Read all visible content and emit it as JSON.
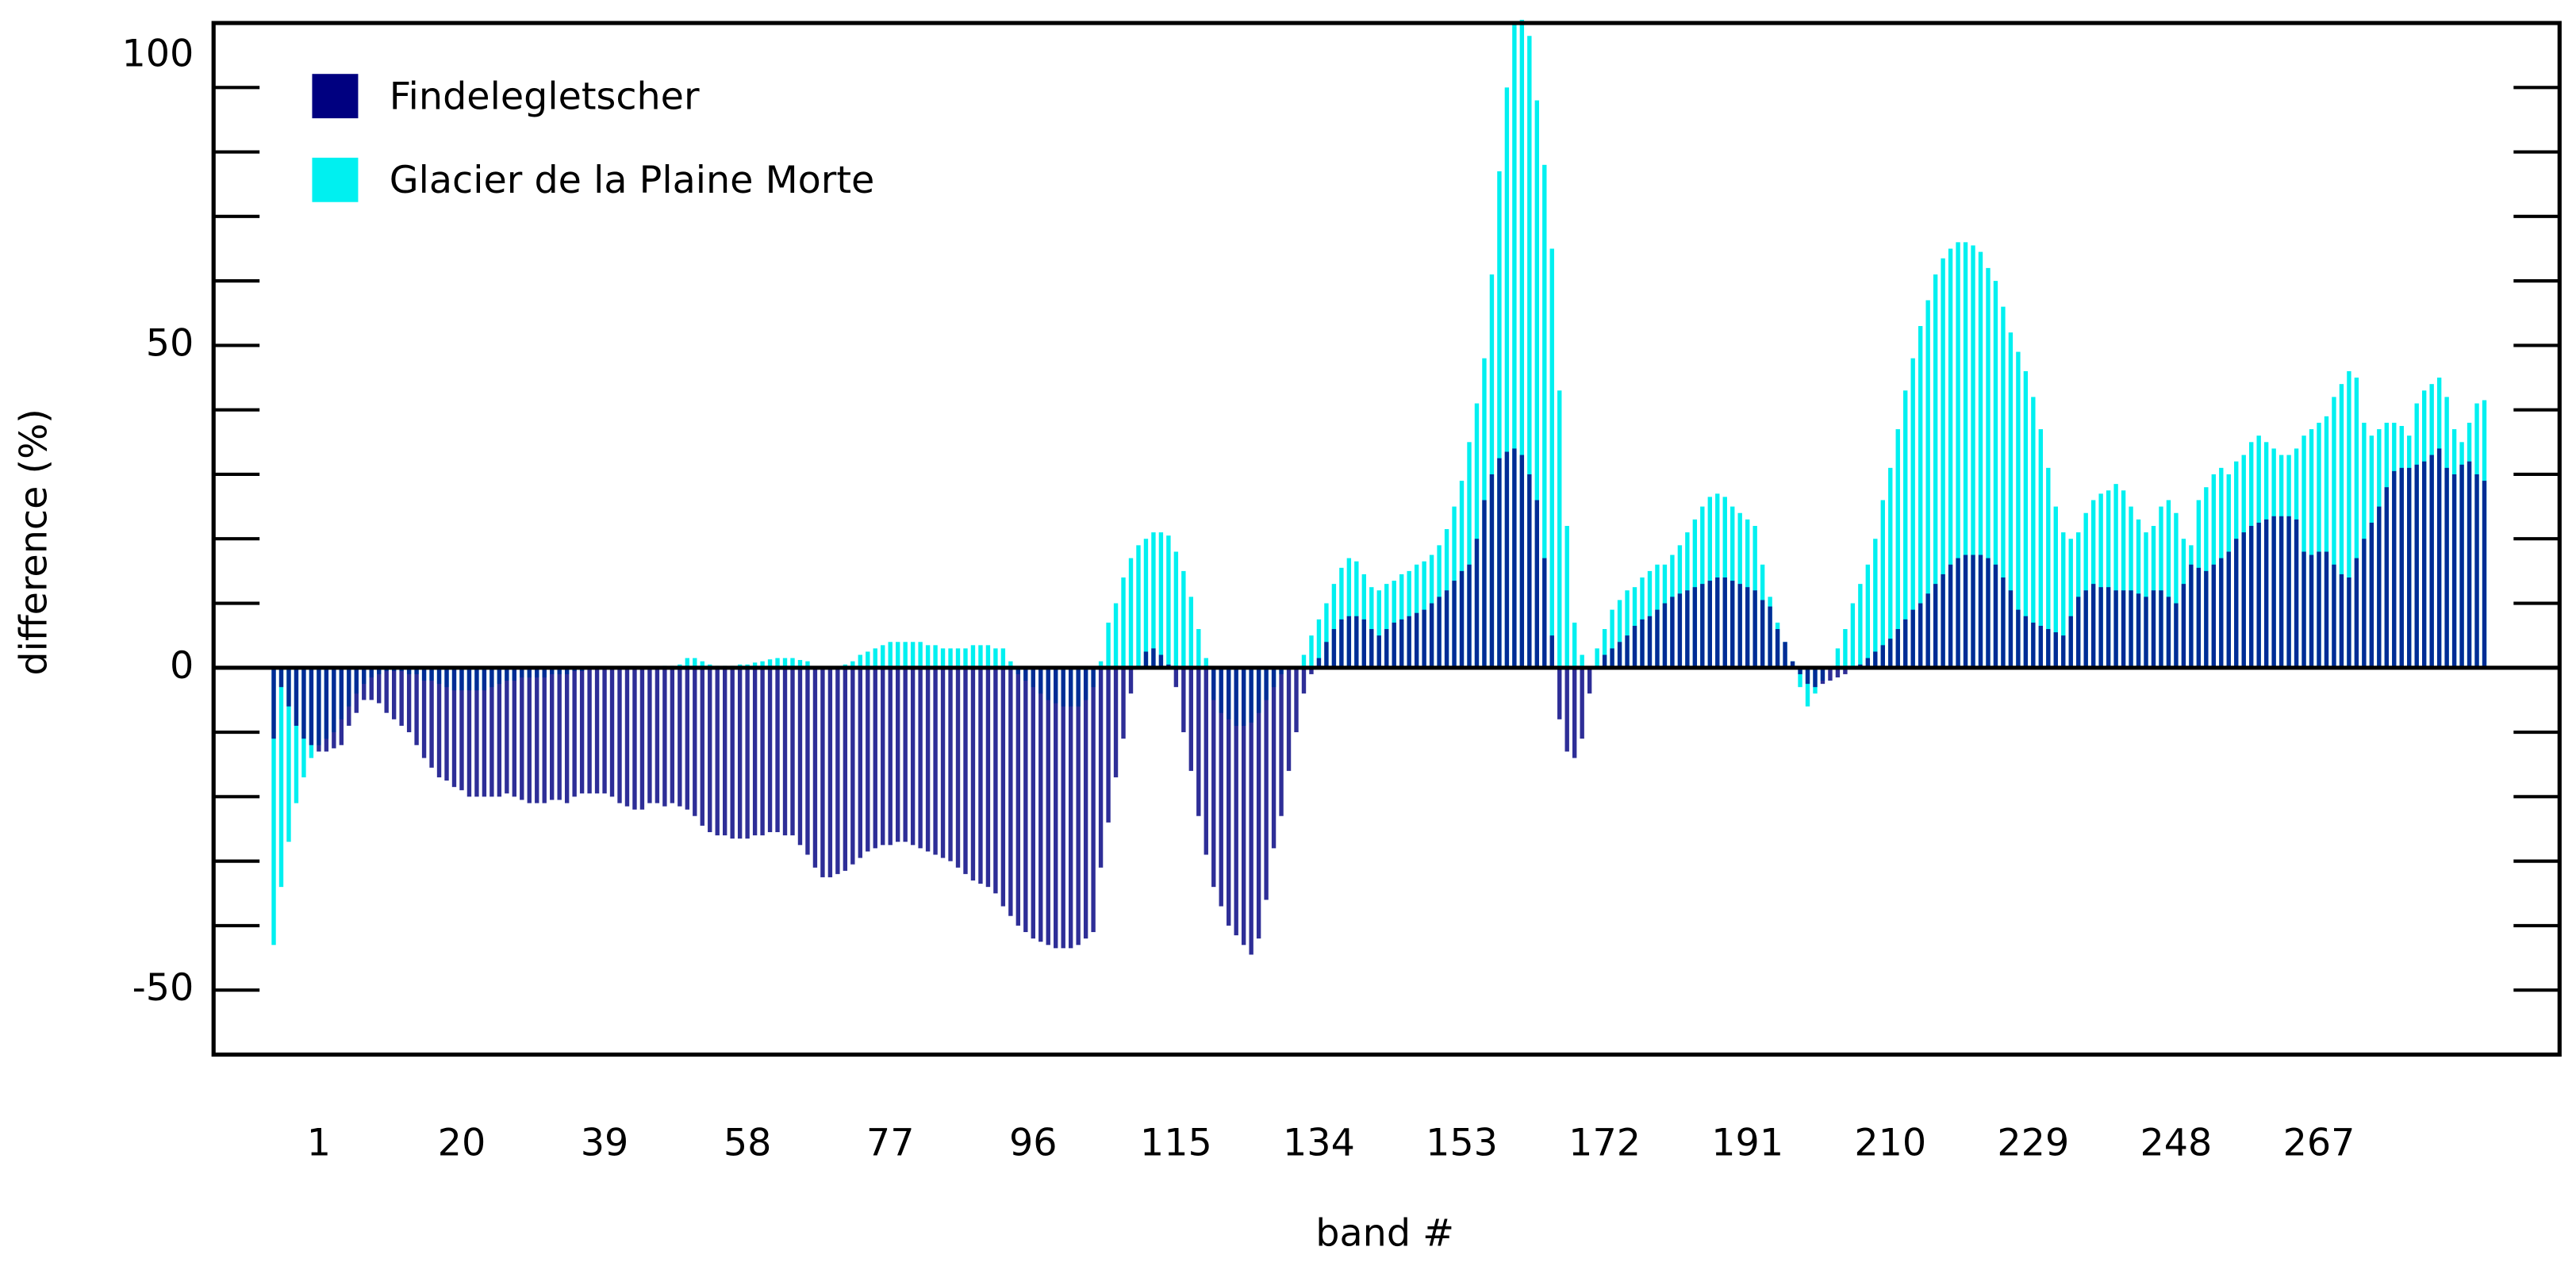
{
  "chart_data": {
    "type": "bar",
    "xlabel": "band #",
    "ylabel": "difference (%)",
    "x": [
      -5,
      -4,
      -3,
      -2,
      -1,
      0,
      1,
      2,
      3,
      4,
      5,
      6,
      7,
      8,
      9,
      10,
      11,
      12,
      13,
      14,
      15,
      16,
      17,
      18,
      19,
      20,
      21,
      22,
      23,
      24,
      25,
      26,
      27,
      28,
      29,
      30,
      31,
      32,
      33,
      34,
      35,
      36,
      37,
      38,
      39,
      40,
      41,
      42,
      43,
      44,
      45,
      46,
      47,
      48,
      49,
      50,
      51,
      52,
      53,
      54,
      55,
      56,
      57,
      58,
      59,
      60,
      61,
      62,
      63,
      64,
      65,
      66,
      67,
      68,
      69,
      70,
      71,
      72,
      73,
      74,
      75,
      76,
      77,
      78,
      79,
      80,
      81,
      82,
      83,
      84,
      85,
      86,
      87,
      88,
      89,
      90,
      91,
      92,
      93,
      94,
      95,
      96,
      97,
      98,
      99,
      100,
      101,
      102,
      103,
      104,
      105,
      106,
      107,
      108,
      109,
      110,
      111,
      112,
      113,
      114,
      115,
      116,
      117,
      118,
      119,
      120,
      121,
      122,
      123,
      124,
      125,
      126,
      127,
      128,
      129,
      130,
      131,
      132,
      133,
      134,
      135,
      136,
      137,
      138,
      139,
      140,
      141,
      142,
      143,
      144,
      145,
      146,
      147,
      148,
      149,
      150,
      151,
      152,
      153,
      154,
      155,
      156,
      157,
      158,
      159,
      160,
      161,
      162,
      163,
      164,
      165,
      166,
      167,
      168,
      169,
      170,
      171,
      172,
      173,
      174,
      175,
      176,
      177,
      178,
      179,
      180,
      181,
      182,
      183,
      184,
      185,
      186,
      187,
      188,
      189,
      190,
      191,
      192,
      193,
      194,
      195,
      196,
      197,
      198,
      199,
      200,
      201,
      202,
      203,
      204,
      205,
      206,
      207,
      208,
      209,
      210,
      211,
      212,
      213,
      214,
      215,
      216,
      217,
      218,
      219,
      220,
      221,
      222,
      223,
      224,
      225,
      226,
      227,
      228,
      229,
      230,
      231,
      232,
      233,
      234,
      235,
      236,
      237,
      238,
      239,
      240,
      241,
      242,
      243,
      244,
      245,
      246,
      247,
      248,
      249,
      250,
      251,
      252,
      253,
      254,
      255,
      256,
      257,
      258,
      259,
      260,
      261,
      262,
      263,
      264,
      265,
      266,
      267,
      268,
      269,
      270,
      271,
      272,
      273,
      274,
      275,
      276,
      277,
      278,
      279,
      280,
      281,
      282,
      283,
      284,
      285,
      286,
      287,
      288,
      289
    ],
    "series": [
      {
        "name": "Findelegletscher",
        "color": "#000080",
        "values": [
          -11,
          -3,
          -6,
          -9,
          -11,
          -12,
          -13,
          -13,
          -12.5,
          -12,
          -9,
          -7,
          -5,
          -5,
          -5.5,
          -7,
          -8,
          -9,
          -10,
          -12,
          -14,
          -15.5,
          -17,
          -17.5,
          -18.5,
          -19,
          -20,
          -20,
          -20,
          -20,
          -20,
          -19.5,
          -20,
          -20.5,
          -21,
          -21,
          -21,
          -20.5,
          -20.5,
          -21,
          -20,
          -19.5,
          -19.5,
          -19.5,
          -19.5,
          -20,
          -21,
          -21.5,
          -22,
          -22,
          -21,
          -21,
          -21.5,
          -21,
          -21.5,
          -22,
          -23,
          -24.5,
          -25.5,
          -26,
          -26,
          -26.5,
          -26.5,
          -26.5,
          -26,
          -26,
          -25.5,
          -25.5,
          -26,
          -26,
          -27.5,
          -29,
          -31,
          -32.5,
          -32.5,
          -32,
          -31.5,
          -30.5,
          -29.5,
          -28.5,
          -28,
          -27.5,
          -27.5,
          -27,
          -27,
          -27.5,
          -28,
          -28.5,
          -29,
          -29.5,
          -30,
          -31,
          -32,
          -33,
          -33.5,
          -34,
          -35,
          -37,
          -38.5,
          -40,
          -41,
          -42,
          -42.5,
          -43,
          -43.5,
          -43.5,
          -43.5,
          -43,
          -42,
          -41,
          -31,
          -24,
          -17,
          -11,
          -4,
          0,
          2.5,
          3,
          2,
          0.5,
          -3,
          -10,
          -16,
          -23,
          -29,
          -34,
          -37,
          -40,
          -41.5,
          -43,
          -44.5,
          -42,
          -36,
          -28,
          -23,
          -16,
          -10,
          -4,
          -1,
          1.5,
          4,
          6,
          7.5,
          8,
          8,
          7.5,
          6,
          5,
          6,
          7,
          7.5,
          8,
          8.5,
          9,
          10,
          11,
          12,
          13.5,
          15,
          16,
          20,
          26,
          30,
          32.5,
          33.5,
          34,
          33,
          30,
          26,
          17,
          5,
          -8,
          -13,
          -14,
          -11,
          -4,
          0,
          2,
          3,
          4,
          5,
          6.5,
          7.5,
          8,
          9,
          10,
          11,
          11.5,
          12,
          12.5,
          13,
          13.5,
          14,
          14,
          13.5,
          13,
          12.5,
          12,
          10.5,
          9.5,
          6,
          4,
          1,
          -1,
          -2.5,
          -3,
          -2.5,
          -2,
          -1.5,
          -1,
          0,
          0.5,
          1.5,
          2.5,
          3.5,
          4.5,
          6,
          7.5,
          9,
          10,
          11.5,
          13,
          14.5,
          16,
          17,
          17.5,
          17.5,
          17.5,
          17,
          16,
          14,
          12,
          9,
          8,
          7,
          6.5,
          6,
          5.5,
          5,
          8,
          11,
          12,
          13,
          12.5,
          12.5,
          12,
          12,
          12,
          11.5,
          11,
          12,
          12,
          11,
          10,
          13,
          16,
          15.5,
          15,
          16,
          17,
          18,
          20,
          21,
          22,
          22.5,
          23,
          23.5,
          23.5,
          23.5,
          23,
          18,
          17.5,
          18,
          18,
          16,
          14.5,
          14,
          17,
          20,
          22.5,
          25,
          28,
          30.5,
          31,
          31,
          31.5,
          32,
          33,
          34,
          31,
          30,
          31.5,
          32,
          30,
          29
        ]
      },
      {
        "name": "Glacier de la Plaine Morte",
        "color": "#00f0f0",
        "values": [
          -43,
          -34,
          -27,
          -21,
          -17,
          -14,
          -12,
          -11,
          -10,
          -8,
          -6,
          -4,
          -2.5,
          -1.5,
          -1,
          -0.5,
          -0.5,
          -0.5,
          -1,
          -1,
          -2,
          -2,
          -2.5,
          -3,
          -3.5,
          -3.5,
          -3.5,
          -3.5,
          -3.5,
          -3,
          -2.5,
          -2,
          -2,
          -1.5,
          -1.5,
          -1.5,
          -1.5,
          -1,
          -1,
          -1,
          -0.5,
          -0.5,
          0,
          0,
          0,
          0,
          0,
          0,
          0,
          0,
          0,
          0,
          0.3,
          0.3,
          0.5,
          1.5,
          1.5,
          1,
          0.5,
          0.3,
          0.3,
          0.3,
          0.5,
          0.5,
          0.8,
          1,
          1.3,
          1.5,
          1.5,
          1.5,
          1.2,
          1,
          0,
          0,
          0,
          0,
          0.5,
          1,
          2,
          2.5,
          3,
          3.5,
          4,
          4,
          4,
          4,
          4,
          3.5,
          3.5,
          3,
          3,
          3,
          3,
          3.5,
          3.5,
          3.5,
          3,
          3,
          1,
          -1,
          -2,
          -3,
          -4,
          -5,
          -5.5,
          -6,
          -6,
          -6,
          -5,
          -3,
          1,
          7,
          10,
          14,
          17,
          19,
          20,
          21,
          21,
          20.5,
          18,
          15,
          11,
          6,
          1.5,
          -5,
          -7,
          -8,
          -9,
          -9,
          -8.5,
          -7,
          -5,
          -3,
          -1,
          0,
          0,
          2,
          5,
          7.5,
          10,
          13,
          15.5,
          17,
          16.5,
          14.5,
          12.5,
          12,
          13,
          13.5,
          14.5,
          15,
          16,
          16.5,
          17.5,
          19,
          21.5,
          25,
          29,
          35,
          41,
          48,
          61,
          77,
          90,
          100,
          100.5,
          98,
          88,
          78,
          65,
          43,
          22,
          7,
          2,
          0,
          3,
          6,
          9,
          10.5,
          12,
          12.5,
          14,
          15,
          16,
          16,
          17.5,
          19,
          21,
          23,
          25,
          26.5,
          27,
          26.5,
          25,
          24,
          23,
          22,
          16,
          11,
          7,
          4,
          1,
          -3,
          -6,
          -4,
          -2,
          0,
          3,
          6,
          10,
          13,
          16,
          20,
          26,
          31,
          37,
          43,
          48,
          53,
          57,
          61,
          63.5,
          65,
          66,
          66,
          65.5,
          64.5,
          62,
          60,
          56,
          52,
          49,
          46,
          42,
          37,
          31,
          25,
          21,
          20,
          21,
          24,
          26,
          27,
          27.5,
          28.5,
          27.5,
          25,
          23,
          21,
          22,
          25,
          26,
          24,
          20,
          19,
          26,
          28,
          30,
          31,
          30,
          32,
          33,
          35,
          36,
          35,
          34,
          33,
          33,
          34,
          36,
          37,
          38,
          39,
          42,
          44,
          46,
          45,
          38,
          36,
          37,
          38,
          38,
          37.5,
          36,
          41,
          43,
          44,
          45,
          42,
          37,
          35,
          38,
          41,
          41.5
        ]
      }
    ],
    "xlim": [
      -13,
      299
    ],
    "xticks": [
      1,
      20,
      39,
      58,
      77,
      96,
      115,
      134,
      153,
      172,
      191,
      210,
      229,
      248,
      267
    ],
    "ylim": [
      -60,
      100
    ],
    "yticks": [
      -50,
      0,
      50,
      100
    ],
    "yminorticks": [
      -50,
      -40,
      -30,
      -20,
      -10,
      0,
      10,
      20,
      30,
      40,
      50,
      60,
      70,
      80,
      90
    ],
    "legend": "upper left",
    "grid": false
  }
}
